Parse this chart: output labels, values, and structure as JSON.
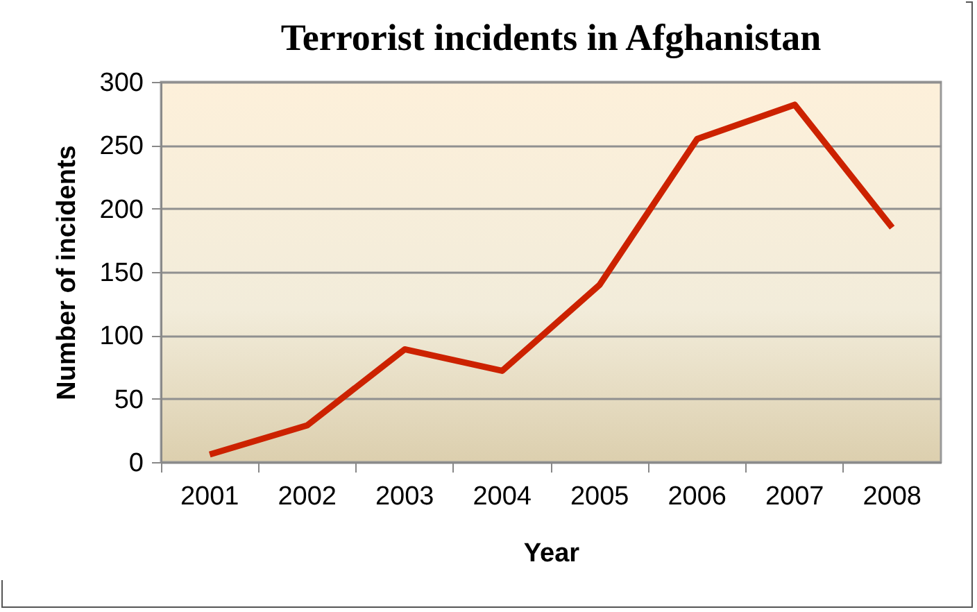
{
  "chart_data": {
    "type": "line",
    "title": "Terrorist incidents in Afghanistan",
    "xlabel": "Year",
    "ylabel": "Number of incidents",
    "categories": [
      "2001",
      "2002",
      "2003",
      "2004",
      "2005",
      "2006",
      "2007",
      "2008"
    ],
    "series": [
      {
        "color": "#cc2200",
        "values": [
          6,
          29,
          89,
          72,
          140,
          255,
          282,
          185
        ]
      }
    ],
    "ylim": [
      0,
      300
    ],
    "yticks": [
      0,
      50,
      100,
      150,
      200,
      250,
      300
    ],
    "grid": "y",
    "legend": false,
    "marker": "none",
    "line_style": "solid"
  }
}
